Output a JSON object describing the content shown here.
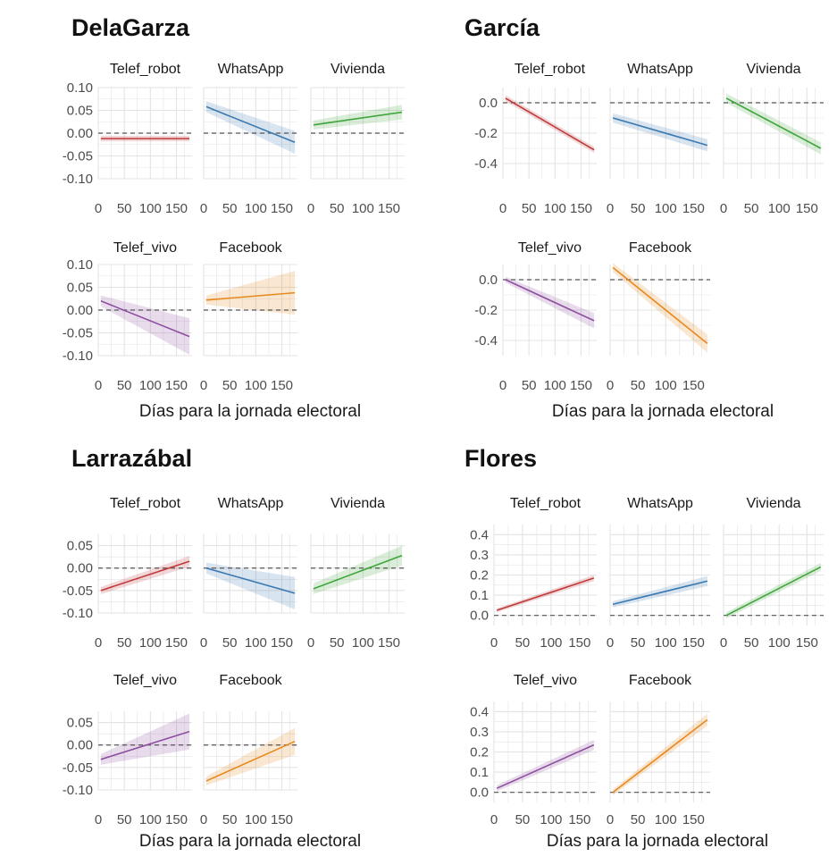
{
  "figure": {
    "background": "#ffffff",
    "grid_color": "#e3e3e3",
    "reference_line_color": "#555555"
  },
  "chart_data": [
    {
      "type": "line",
      "title": "DelaGarza",
      "xlabel": "Días para la jornada electoral",
      "ylabel": "",
      "xlim": [
        0,
        180
      ],
      "x_ticks": [
        0,
        50,
        100,
        150
      ],
      "x_tick_labels": [
        "0",
        "50",
        "100",
        "150"
      ],
      "ylim": [
        -0.1,
        0.1
      ],
      "y_ticks": [
        -0.1,
        -0.05,
        0.0,
        0.05,
        0.1
      ],
      "y_tick_labels": [
        "-0.10",
        "-0.05",
        "0.00",
        "0.05",
        "0.10"
      ],
      "reference_line": 0,
      "panels": [
        {
          "label": "Telef_robot",
          "color": "#C0393B",
          "x": [
            5,
            175
          ],
          "y": [
            -0.012,
            -0.012
          ],
          "ci_low": [
            -0.018,
            -0.018
          ],
          "ci_high": [
            -0.006,
            -0.006
          ]
        },
        {
          "label": "WhatsApp",
          "color": "#3A78B0",
          "x": [
            5,
            175
          ],
          "y": [
            0.058,
            -0.02
          ],
          "ci_low": [
            0.046,
            -0.045
          ],
          "ci_high": [
            0.07,
            0.005
          ]
        },
        {
          "label": "Vivienda",
          "color": "#3FA53B",
          "x": [
            5,
            175
          ],
          "y": [
            0.018,
            0.046
          ],
          "ci_low": [
            0.008,
            0.03
          ],
          "ci_high": [
            0.028,
            0.062
          ]
        },
        {
          "label": "Telef_vivo",
          "color": "#8E4FA0",
          "x": [
            5,
            175
          ],
          "y": [
            0.02,
            -0.058
          ],
          "ci_low": [
            0.008,
            -0.098
          ],
          "ci_high": [
            0.032,
            -0.018
          ]
        },
        {
          "label": "Facebook",
          "color": "#E8891E",
          "x": [
            5,
            175
          ],
          "y": [
            0.022,
            0.038
          ],
          "ci_low": [
            0.012,
            -0.01
          ],
          "ci_high": [
            0.032,
            0.086
          ]
        }
      ]
    },
    {
      "type": "line",
      "title": "García",
      "xlabel": "Días para la jornada electoral",
      "ylabel": "",
      "xlim": [
        0,
        180
      ],
      "x_ticks": [
        0,
        50,
        100,
        150
      ],
      "x_tick_labels": [
        "0",
        "50",
        "100",
        "150"
      ],
      "ylim": [
        -0.5,
        0.1
      ],
      "y_ticks": [
        -0.4,
        -0.2,
        0.0
      ],
      "y_tick_labels": [
        "-0.4",
        "-0.2",
        "0.0"
      ],
      "reference_line": 0,
      "panels": [
        {
          "label": "Telef_robot",
          "color": "#C0393B",
          "x": [
            5,
            175
          ],
          "y": [
            0.03,
            -0.31
          ],
          "ci_low": [
            0.01,
            -0.33
          ],
          "ci_high": [
            0.05,
            -0.29
          ]
        },
        {
          "label": "WhatsApp",
          "color": "#3A78B0",
          "x": [
            5,
            175
          ],
          "y": [
            -0.1,
            -0.28
          ],
          "ci_low": [
            -0.13,
            -0.32
          ],
          "ci_high": [
            -0.07,
            -0.24
          ]
        },
        {
          "label": "Vivienda",
          "color": "#3FA53B",
          "x": [
            5,
            175
          ],
          "y": [
            0.03,
            -0.3
          ],
          "ci_low": [
            0.0,
            -0.34
          ],
          "ci_high": [
            0.06,
            -0.26
          ]
        },
        {
          "label": "Telef_vivo",
          "color": "#8E4FA0",
          "x": [
            5,
            175
          ],
          "y": [
            0.0,
            -0.27
          ],
          "ci_low": [
            -0.02,
            -0.32
          ],
          "ci_high": [
            0.02,
            -0.22
          ]
        },
        {
          "label": "Facebook",
          "color": "#E8891E",
          "x": [
            5,
            175
          ],
          "y": [
            0.08,
            -0.42
          ],
          "ci_low": [
            0.05,
            -0.48
          ],
          "ci_high": [
            0.11,
            -0.36
          ]
        }
      ]
    },
    {
      "type": "line",
      "title": "Larrazábal",
      "xlabel": "Días para la jornada electoral",
      "ylabel": "",
      "xlim": [
        0,
        180
      ],
      "x_ticks": [
        0,
        50,
        100,
        150
      ],
      "x_tick_labels": [
        "0",
        "50",
        "100",
        "150"
      ],
      "ylim": [
        -0.1,
        0.075
      ],
      "y_ticks": [
        -0.1,
        -0.05,
        0.0,
        0.05
      ],
      "y_tick_labels": [
        "-0.10",
        "-0.05",
        "0.00",
        "0.05"
      ],
      "reference_line": 0,
      "panels": [
        {
          "label": "Telef_robot",
          "color": "#C0393B",
          "x": [
            5,
            175
          ],
          "y": [
            -0.05,
            0.015
          ],
          "ci_low": [
            -0.058,
            0.003
          ],
          "ci_high": [
            -0.042,
            0.027
          ]
        },
        {
          "label": "WhatsApp",
          "color": "#3A78B0",
          "x": [
            5,
            175
          ],
          "y": [
            0.0,
            -0.056
          ],
          "ci_low": [
            -0.012,
            -0.092
          ],
          "ci_high": [
            0.012,
            -0.02
          ]
        },
        {
          "label": "Vivienda",
          "color": "#3FA53B",
          "x": [
            5,
            175
          ],
          "y": [
            -0.046,
            0.028
          ],
          "ci_low": [
            -0.058,
            0.006
          ],
          "ci_high": [
            -0.034,
            0.05
          ]
        },
        {
          "label": "Telef_vivo",
          "color": "#8E4FA0",
          "x": [
            5,
            175
          ],
          "y": [
            -0.032,
            0.03
          ],
          "ci_low": [
            -0.044,
            -0.01
          ],
          "ci_high": [
            -0.02,
            0.07
          ]
        },
        {
          "label": "Facebook",
          "color": "#E8891E",
          "x": [
            5,
            175
          ],
          "y": [
            -0.08,
            0.008
          ],
          "ci_low": [
            -0.09,
            -0.022
          ],
          "ci_high": [
            -0.07,
            0.038
          ]
        }
      ]
    },
    {
      "type": "line",
      "title": "Flores",
      "xlabel": "Días para la jornada electoral",
      "ylabel": "",
      "xlim": [
        0,
        180
      ],
      "x_ticks": [
        0,
        50,
        100,
        150
      ],
      "x_tick_labels": [
        "0",
        "50",
        "100",
        "150"
      ],
      "ylim": [
        -0.05,
        0.45
      ],
      "y_ticks": [
        0.0,
        0.1,
        0.2,
        0.3,
        0.4
      ],
      "y_tick_labels": [
        "0.0",
        "0.1",
        "0.2",
        "0.3",
        "0.4"
      ],
      "reference_line": 0,
      "panels": [
        {
          "label": "Telef_robot",
          "color": "#C0393B",
          "x": [
            5,
            175
          ],
          "y": [
            0.025,
            0.185
          ],
          "ci_low": [
            0.015,
            0.17
          ],
          "ci_high": [
            0.035,
            0.2
          ]
        },
        {
          "label": "WhatsApp",
          "color": "#3A78B0",
          "x": [
            5,
            175
          ],
          "y": [
            0.055,
            0.17
          ],
          "ci_low": [
            0.04,
            0.145
          ],
          "ci_high": [
            0.07,
            0.195
          ]
        },
        {
          "label": "Vivienda",
          "color": "#3FA53B",
          "x": [
            5,
            175
          ],
          "y": [
            0.0,
            0.24
          ],
          "ci_low": [
            -0.015,
            0.22
          ],
          "ci_high": [
            0.015,
            0.26
          ]
        },
        {
          "label": "Telef_vivo",
          "color": "#8E4FA0",
          "x": [
            5,
            175
          ],
          "y": [
            0.02,
            0.235
          ],
          "ci_low": [
            0.005,
            0.21
          ],
          "ci_high": [
            0.035,
            0.26
          ]
        },
        {
          "label": "Facebook",
          "color": "#E8891E",
          "x": [
            5,
            175
          ],
          "y": [
            0.0,
            0.36
          ],
          "ci_low": [
            -0.015,
            0.33
          ],
          "ci_high": [
            0.015,
            0.39
          ]
        }
      ]
    }
  ]
}
